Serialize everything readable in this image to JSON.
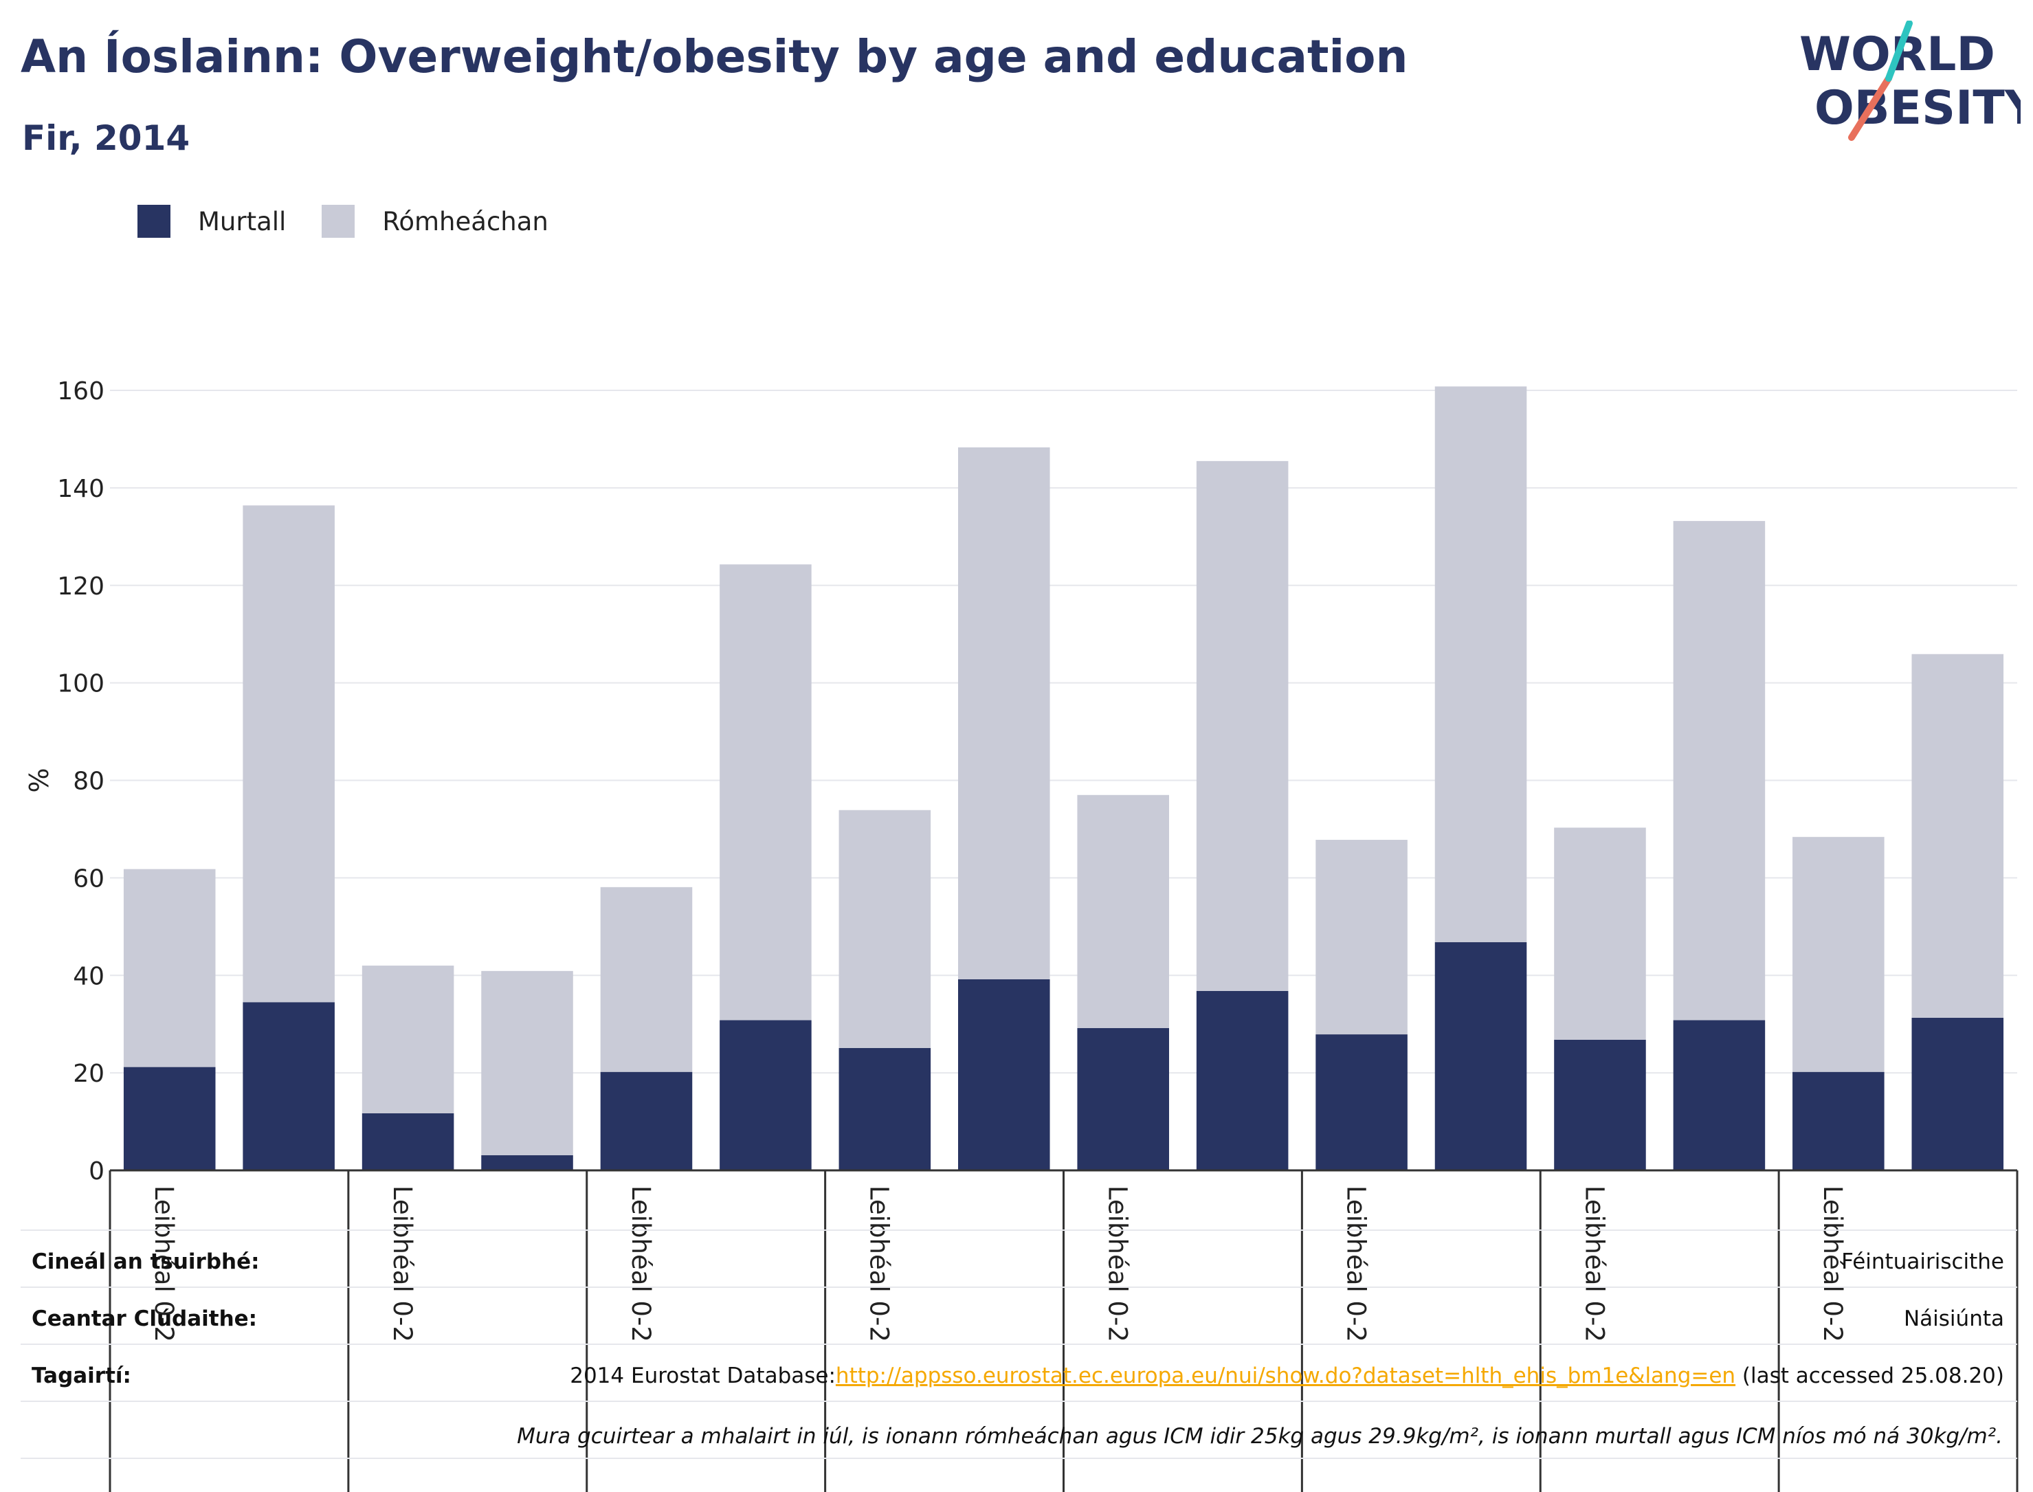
{
  "title": "An Íoslainn: Overweight/obesity by age and education",
  "subtitle": "Fir, 2014",
  "logo": {
    "line1": "WORLD",
    "line2": "OBESITY"
  },
  "legend": [
    {
      "name": "Murtall",
      "color": "#283462"
    },
    {
      "name": "Rómheáchan",
      "color": "#c9cbd7"
    }
  ],
  "chart_data": {
    "type": "bar",
    "stacked": true,
    "ylabel": "%",
    "ylim": [
      0,
      160
    ],
    "yticks": [
      0,
      20,
      40,
      60,
      80,
      100,
      120,
      140,
      160
    ],
    "grid": true,
    "legend_position": "top-left",
    "group_labels": [
      "Leibhéal 0-2",
      "Leibhéal 0-2",
      "Leibhéal 0-2",
      "Leibhéal 0-2",
      "Leibhéal 0-2",
      "Leibhéal 0-2",
      "Leibhéal 0-2",
      "Leibhéal 0-2"
    ],
    "series": [
      {
        "name": "Murtall",
        "color": "#283462",
        "values": [
          21.2,
          34.5,
          11.7,
          3.1,
          20.2,
          30.8,
          25.1,
          39.2,
          29.2,
          36.8,
          27.9,
          46.8,
          26.8,
          30.8,
          20.2,
          31.3
        ]
      },
      {
        "name": "Rómheáchan",
        "color": "#c9cbd7",
        "values": [
          40.6,
          101.9,
          30.3,
          37.8,
          37.9,
          93.5,
          48.8,
          109.1,
          47.8,
          108.7,
          39.9,
          114.0,
          43.5,
          102.4,
          48.2,
          74.6
        ]
      }
    ]
  },
  "info": {
    "survey_type_label": "Cineál an tsuirbhé:",
    "survey_type_value": "Féintuairiscithe",
    "coverage_label": "Ceantar Clúdaithe:",
    "coverage_value": "Náisiúnta",
    "references_label": "Tagairtí:",
    "references_prefix": "2014 Eurostat Database:",
    "references_link": "http://appsso.eurostat.ec.europa.eu/nui/show.do?dataset=hlth_ehis_bm1e&lang=en",
    "references_suffix": " (last accessed 25.08.20)",
    "footnote": "Mura gcuirtear a mhalairt in iúl, is ionann rómheáchan agus ICM idir 25kg agus 29.9kg/m², is ionann murtall agus ICM níos mó ná 30kg/m²."
  }
}
